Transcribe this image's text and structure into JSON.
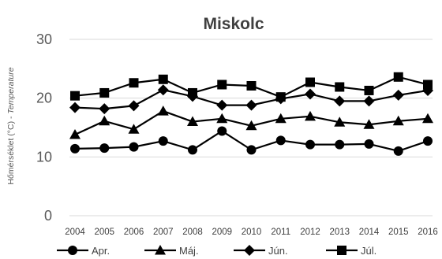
{
  "chart_data": {
    "type": "line",
    "title": "Miskolc",
    "ylabel_main": "Hőmérséklet (°C) - ",
    "ylabel_italic": "Temperature",
    "xlabel": "",
    "ylim": [
      0,
      30
    ],
    "yticks": [
      "0",
      "10",
      "20",
      "30"
    ],
    "grid": "horizontal",
    "legend_position": "bottom",
    "categories": [
      "2004",
      "2005",
      "2006",
      "2007",
      "2008",
      "2009",
      "2010",
      "2011",
      "2012",
      "2013",
      "2014",
      "2015",
      "2016"
    ],
    "series": [
      {
        "name": "Apr.",
        "marker": "circle",
        "values": [
          11.4,
          11.5,
          11.7,
          12.7,
          11.2,
          14.4,
          11.2,
          12.8,
          12.1,
          12.1,
          12.2,
          11.0,
          12.7
        ]
      },
      {
        "name": "Máj.",
        "marker": "triangle",
        "values": [
          13.8,
          16.1,
          14.7,
          17.8,
          16.0,
          16.5,
          15.3,
          16.5,
          16.9,
          15.9,
          15.5,
          16.1,
          16.5
        ]
      },
      {
        "name": "Jún.",
        "marker": "diamond",
        "values": [
          18.4,
          18.2,
          18.7,
          21.4,
          20.3,
          18.8,
          18.8,
          19.9,
          20.7,
          19.5,
          19.5,
          20.5,
          21.3
        ]
      },
      {
        "name": "Júl.",
        "marker": "square",
        "values": [
          20.4,
          20.9,
          22.6,
          23.2,
          20.9,
          22.3,
          22.1,
          20.2,
          22.7,
          21.9,
          21.3,
          23.6,
          22.3
        ]
      }
    ]
  }
}
